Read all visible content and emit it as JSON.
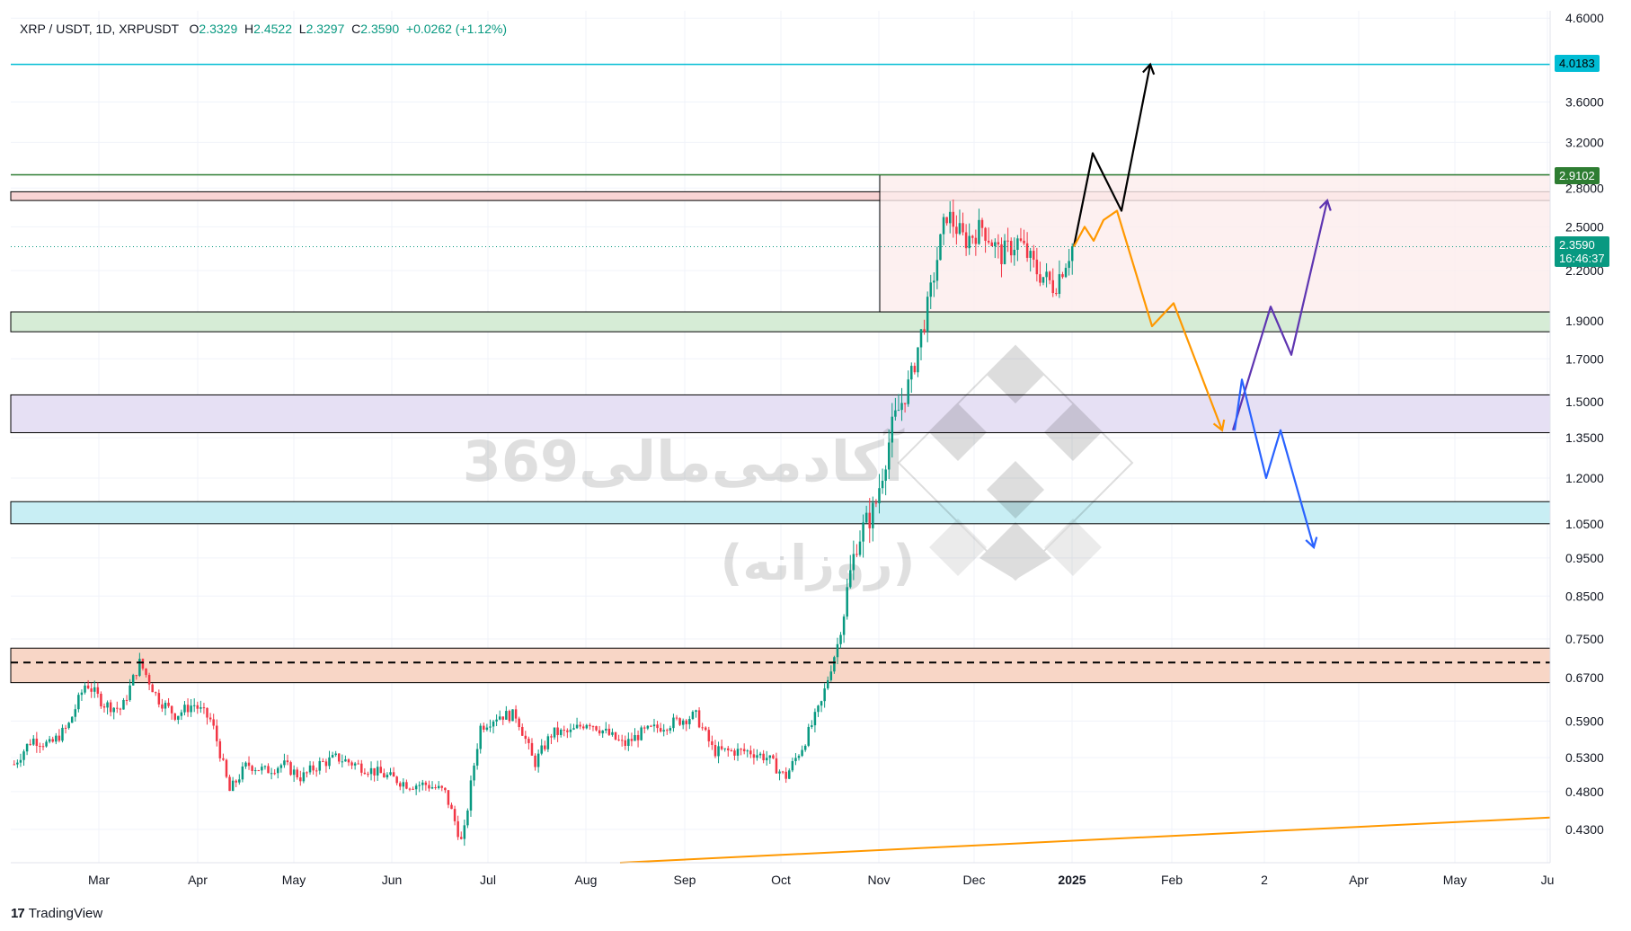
{
  "legend": {
    "symbol": "XRP / USDT, 1D, XRPUSDT",
    "open_label": "O",
    "open": "2.3329",
    "high_label": "H",
    "high": "2.4522",
    "low_label": "L",
    "low": "2.3297",
    "close_label": "C",
    "close": "2.3590",
    "change": "+0.0262 (+1.12%)"
  },
  "brand": {
    "logo_text": "17",
    "name": "TradingView"
  },
  "watermark": {
    "line1": "آکادمی‌مالی369",
    "line2": "(روزانه)"
  },
  "price_tags": {
    "resistance_top": "4.0183",
    "resistance_green": "2.9102",
    "last_price": "2.3590",
    "countdown": "16:46:37"
  },
  "colors": {
    "up": "#089981",
    "down": "#f23645",
    "cyan_line": "#00bcd4",
    "green_line": "#2e7d32",
    "orange": "#ff9800",
    "purple": "#5e35b1",
    "blue": "#2962ff",
    "black": "#000000"
  },
  "chart_data": {
    "type": "candlestick",
    "symbol": "XRPUSDT",
    "timeframe": "1D",
    "y_scale": "log",
    "ylim": [
      0.39,
      4.7
    ],
    "y_ticks": [
      "4.6000",
      "3.6000",
      "3.2000",
      "2.8000",
      "2.5000",
      "2.2000",
      "1.9000",
      "1.7000",
      "1.5000",
      "1.3500",
      "1.2000",
      "1.0500",
      "0.9500",
      "0.8500",
      "0.7500",
      "0.6700",
      "0.5900",
      "0.5300",
      "0.4800",
      "0.4300"
    ],
    "x_ticks": [
      "Mar",
      "Apr",
      "May",
      "Jun",
      "Jul",
      "Aug",
      "Sep",
      "Oct",
      "Nov",
      "Dec",
      "2025",
      "Feb",
      "2",
      "Apr",
      "May",
      "Ju"
    ],
    "price_path": [
      [
        0.52,
        0.51
      ],
      [
        0.56,
        0.54
      ],
      [
        0.55,
        0.55
      ],
      [
        0.58,
        0.58
      ],
      [
        0.66,
        0.64
      ],
      [
        0.62,
        0.62
      ],
      [
        0.61,
        0.62
      ],
      [
        0.7,
        0.7
      ],
      [
        0.63,
        0.63
      ],
      [
        0.6,
        0.61
      ],
      [
        0.62,
        0.62
      ],
      [
        0.59,
        0.59
      ],
      [
        0.48,
        0.46
      ],
      [
        0.52,
        0.52
      ],
      [
        0.51,
        0.5
      ],
      [
        0.52,
        0.52
      ],
      [
        0.5,
        0.5
      ],
      [
        0.52,
        0.52
      ],
      [
        0.53,
        0.53
      ],
      [
        0.52,
        0.52
      ],
      [
        0.51,
        0.51
      ],
      [
        0.5,
        0.5
      ],
      [
        0.49,
        0.49
      ],
      [
        0.49,
        0.49
      ],
      [
        0.48,
        0.48
      ],
      [
        0.41,
        0.43
      ],
      [
        0.58,
        0.58
      ],
      [
        0.6,
        0.6
      ],
      [
        0.6,
        0.6
      ],
      [
        0.52,
        0.52
      ],
      [
        0.57,
        0.57
      ],
      [
        0.57,
        0.57
      ],
      [
        0.59,
        0.59
      ],
      [
        0.57,
        0.57
      ],
      [
        0.55,
        0.55
      ],
      [
        0.57,
        0.57
      ],
      [
        0.58,
        0.58
      ],
      [
        0.59,
        0.59
      ],
      [
        0.6,
        0.6
      ],
      [
        0.54,
        0.54
      ],
      [
        0.54,
        0.54
      ],
      [
        0.54,
        0.54
      ],
      [
        0.53,
        0.53
      ],
      [
        0.5,
        0.5
      ],
      [
        0.55,
        0.55
      ],
      [
        0.62,
        0.62
      ],
      [
        0.75,
        0.75
      ],
      [
        1.0,
        1.0
      ],
      [
        1.1,
        1.1
      ],
      [
        1.4,
        1.4
      ],
      [
        1.6,
        1.6
      ],
      [
        2.0,
        2.0
      ],
      [
        2.6,
        2.6
      ],
      [
        2.4,
        2.4
      ],
      [
        2.5,
        2.5
      ],
      [
        2.3,
        2.3
      ],
      [
        2.4,
        2.4
      ],
      [
        2.2,
        2.2
      ],
      [
        2.1,
        2.1
      ],
      [
        2.36,
        2.36
      ]
    ],
    "zones": [
      {
        "low": 2.7,
        "high": 2.77,
        "color": "#f8d4d4"
      },
      {
        "low": 1.84,
        "high": 1.95,
        "color": "#d6ecd6"
      },
      {
        "low": 1.37,
        "high": 1.53,
        "color": "#e6e0f4"
      },
      {
        "low": 1.05,
        "high": 1.12,
        "color": "#c8eef4"
      },
      {
        "low": 0.66,
        "high": 0.73,
        "color": "#f8d6c6"
      }
    ],
    "box": {
      "start": "Nov",
      "low": 1.95,
      "high": 2.91,
      "color": "#fdecec"
    },
    "horizontal_levels": [
      {
        "value": 4.0183,
        "style": "solid",
        "color": "#00bcd4"
      },
      {
        "value": 2.9102,
        "style": "solid",
        "color": "#2e7d32"
      },
      {
        "value": 0.7,
        "style": "dashed",
        "color": "#000000"
      }
    ],
    "trendline": {
      "from": [
        "Aug",
        0.39
      ],
      "to": [
        "Ju",
        0.445
      ],
      "color": "#ff9800"
    },
    "scenarios": [
      {
        "color": "#000000",
        "points": [
          [
            2.36
          ],
          [
            3.1
          ],
          [
            2.62
          ],
          [
            4.0183
          ]
        ]
      },
      {
        "color": "#ff9800",
        "points": [
          [
            2.36
          ],
          [
            2.5
          ],
          [
            2.4
          ],
          [
            2.55
          ],
          [
            2.62
          ],
          [
            1.87
          ],
          [
            2.0
          ],
          [
            1.38
          ]
        ]
      },
      {
        "color": "#5e35b1",
        "points": [
          [
            1.38
          ],
          [
            1.98
          ],
          [
            1.72
          ],
          [
            2.7
          ]
        ]
      },
      {
        "color": "#2962ff",
        "points": [
          [
            1.38
          ],
          [
            1.6
          ],
          [
            1.2
          ],
          [
            1.38
          ],
          [
            0.98
          ]
        ]
      }
    ]
  }
}
